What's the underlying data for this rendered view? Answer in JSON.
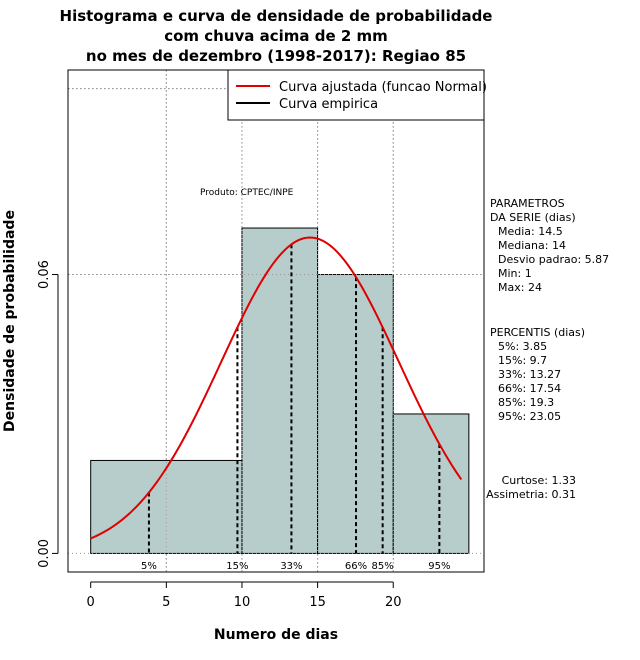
{
  "chart_data": {
    "type": "histogram",
    "title_lines": [
      "Histograma e curva de densidade de probabilidade",
      "com chuva acima de 2 mm",
      "no mes de dezembro (1998-2017): Regiao 85"
    ],
    "xlabel": "Numero de dias",
    "ylabel": "Densidade de probabilidade",
    "xlim": [
      -1.5,
      26
    ],
    "ylim": [
      -0.004,
      0.104
    ],
    "x_ticks": [
      0,
      5,
      10,
      15,
      20
    ],
    "y_ticks": [
      0.0,
      0.06
    ],
    "y_tick_labels": [
      "0.00",
      "0.06"
    ],
    "gridlines_x": [
      5,
      10,
      15,
      20
    ],
    "gridlines_y": [
      0.06,
      0.1
    ],
    "bins": [
      {
        "start": 0,
        "end": 10,
        "density": 0.02
      },
      {
        "start": 10,
        "end": 15,
        "density": 0.07
      },
      {
        "start": 15,
        "end": 20,
        "density": 0.06
      },
      {
        "start": 20,
        "end": 25,
        "density": 0.03
      }
    ],
    "bar_color": "#b6cdcc",
    "normal_curve": {
      "mean": 14.5,
      "sd": 5.87,
      "x_range": [
        0,
        24.5
      ],
      "color": "#e00000"
    },
    "percentiles": [
      {
        "label": "5%",
        "x": 3.85
      },
      {
        "label": "15%",
        "x": 9.7
      },
      {
        "label": "33%",
        "x": 13.27
      },
      {
        "label": "66%",
        "x": 17.54
      },
      {
        "label": "85%",
        "x": 19.3
      },
      {
        "label": "95%",
        "x": 23.05
      }
    ],
    "legend": {
      "position": "top-right",
      "items": [
        {
          "label": "Curva ajustada (funcao Normal)",
          "color": "#e00000"
        },
        {
          "label": "Curva empirica",
          "color": "#000000"
        }
      ]
    },
    "credit": "Produto: CPTEC/INPE",
    "stats_block": [
      "PARAMETROS",
      "DA SERIE (dias)",
      "Media: 14.5",
      "Mediana: 14",
      "Desvio padrao: 5.87",
      "Min: 1",
      "Max: 24"
    ],
    "percentis_block": [
      "PERCENTIS (dias)",
      "5%: 3.85",
      "15%: 9.7",
      "33%: 13.27",
      "66%: 17.54",
      "85%: 19.3",
      "95%: 23.05"
    ],
    "shape_block": [
      "Curtose: 1.33",
      "Assimetria: 0.31"
    ]
  }
}
